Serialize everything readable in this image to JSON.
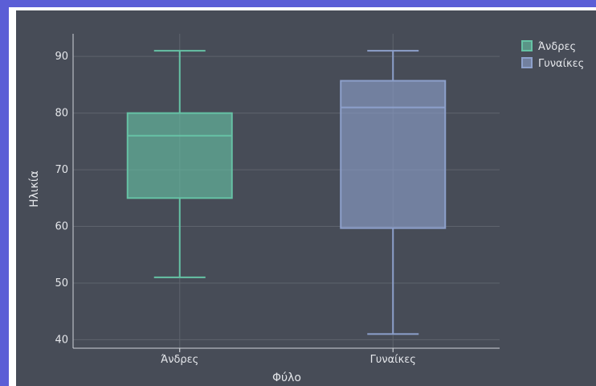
{
  "colors": {
    "background_outer": "#5b5ed6",
    "plot_bg": "#474c57",
    "grid": "#5e636d",
    "text": "#e4e6ea",
    "series": [
      "#66c2a5",
      "#8da0cb"
    ]
  },
  "chart_data": {
    "type": "box",
    "title": "",
    "xlabel": "Φύλο",
    "ylabel": "Ηλικία",
    "ylim": [
      38.5,
      94
    ],
    "yticks": [
      40,
      50,
      60,
      70,
      80,
      90
    ],
    "categories": [
      "Άνδρες",
      "Γυναίκες"
    ],
    "series": [
      {
        "name": "Άνδρες",
        "min": 51,
        "q1": 65,
        "median": 76,
        "q3": 80,
        "max": 91
      },
      {
        "name": "Γυναίκες",
        "min": 41,
        "q1": 59.7,
        "median": 81,
        "q3": 85.7,
        "max": 91
      }
    ],
    "legend": {
      "position": "top-right",
      "entries": [
        "Άνδρες",
        "Γυναίκες"
      ]
    },
    "grid": true
  }
}
